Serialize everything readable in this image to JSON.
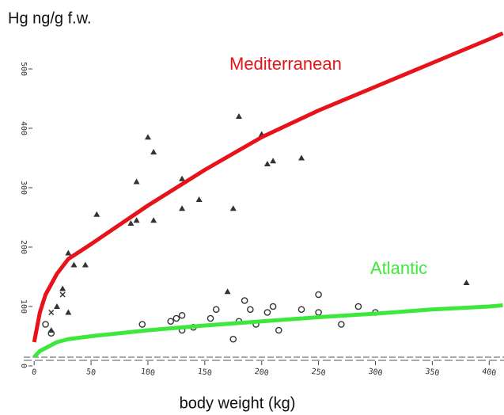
{
  "chart_data": {
    "type": "scatter",
    "ylabel": "Hg ng/g f.w.",
    "xlabel": "body weight (kg)",
    "xlim": [
      -5,
      412
    ],
    "ylim": [
      -10,
      580
    ],
    "xticks": [
      0,
      50,
      100,
      150,
      200,
      250,
      300,
      350,
      400
    ],
    "yticks": [
      0,
      100,
      200,
      300,
      400,
      500
    ],
    "curves": {
      "x": [
        0,
        5,
        10,
        20,
        30,
        50,
        100,
        150,
        200,
        250,
        300,
        350,
        400,
        412
      ],
      "series": [
        {
          "name": "Mediterranean",
          "color": "#e8131a",
          "values": [
            40,
            90,
            120,
            155,
            180,
            205,
            270,
            330,
            385,
            430,
            470,
            510,
            550,
            560
          ]
        },
        {
          "name": "Atlantic",
          "color": "#3ee83a",
          "values": [
            15,
            25,
            30,
            40,
            45,
            50,
            60,
            68,
            75,
            82,
            88,
            95,
            100,
            102
          ]
        }
      ]
    },
    "points": [
      {
        "marker": "triangle",
        "color": "#333333",
        "x": [
          20,
          25,
          30,
          35,
          45,
          55,
          85,
          90,
          90,
          100,
          105,
          105,
          130,
          130,
          145,
          175,
          180,
          205,
          210,
          235,
          200,
          170,
          380,
          30,
          15
        ],
        "y": [
          100,
          130,
          190,
          170,
          170,
          255,
          240,
          245,
          310,
          385,
          360,
          245,
          265,
          315,
          280,
          265,
          420,
          340,
          345,
          350,
          390,
          125,
          140,
          90,
          60
        ]
      },
      {
        "marker": "circle",
        "color": "#333333",
        "x": [
          95,
          120,
          125,
          130,
          140,
          155,
          160,
          175,
          180,
          185,
          190,
          195,
          205,
          210,
          215,
          235,
          250,
          250,
          270,
          285,
          300,
          10,
          15,
          130
        ],
        "y": [
          70,
          75,
          80,
          60,
          65,
          80,
          95,
          45,
          75,
          110,
          95,
          70,
          90,
          100,
          60,
          95,
          120,
          90,
          70,
          100,
          90,
          70,
          55,
          85
        ]
      },
      {
        "marker": "cross",
        "color": "#333333",
        "x": [
          25,
          15
        ],
        "y": [
          120,
          90
        ]
      }
    ]
  }
}
